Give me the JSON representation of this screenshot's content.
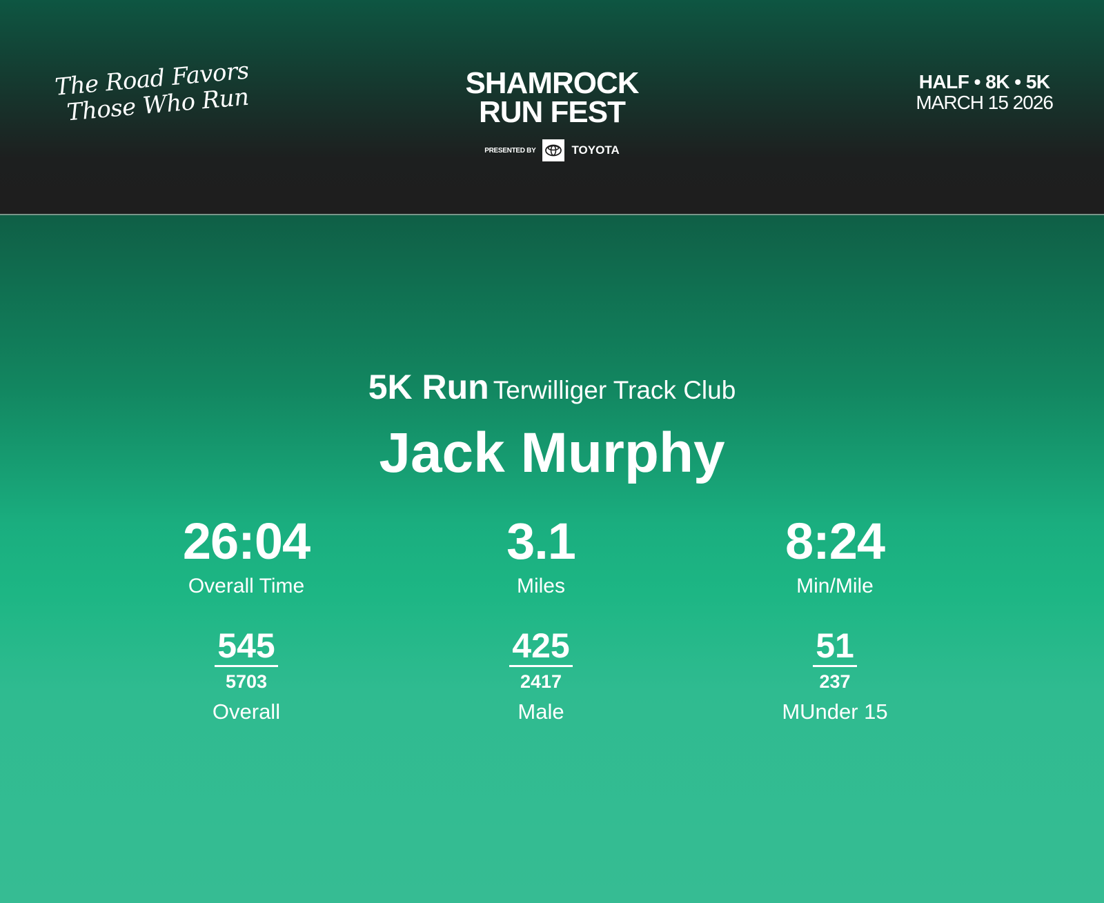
{
  "header": {
    "tagline": [
      "The Road Favors",
      "Those Who Run"
    ],
    "logo": {
      "line1": "SHAMROCK",
      "line2": "RUN FEST",
      "presented_by": "PRESENTED BY",
      "sponsor": "TOYOTA"
    },
    "distances": "HALF • 8K • 5K",
    "date": "MARCH 15 2026"
  },
  "result": {
    "event": "5K Run",
    "club": "Terwilliger Track Club",
    "name": "Jack Murphy",
    "stats": [
      {
        "value": "26:04",
        "label": "Overall Time"
      },
      {
        "value": "3.1",
        "label": "Miles"
      },
      {
        "value": "8:24",
        "label": "Min/Mile"
      }
    ],
    "ranks": [
      {
        "place": "545",
        "total": "5703",
        "label": "Overall"
      },
      {
        "place": "425",
        "total": "2417",
        "label": "Male"
      },
      {
        "place": "51",
        "total": "237",
        "label": "MUnder 15"
      }
    ]
  },
  "colors": {
    "header_bg": "#1e1e1e",
    "header_top": "#0e5642",
    "body_green": "#1db684"
  }
}
